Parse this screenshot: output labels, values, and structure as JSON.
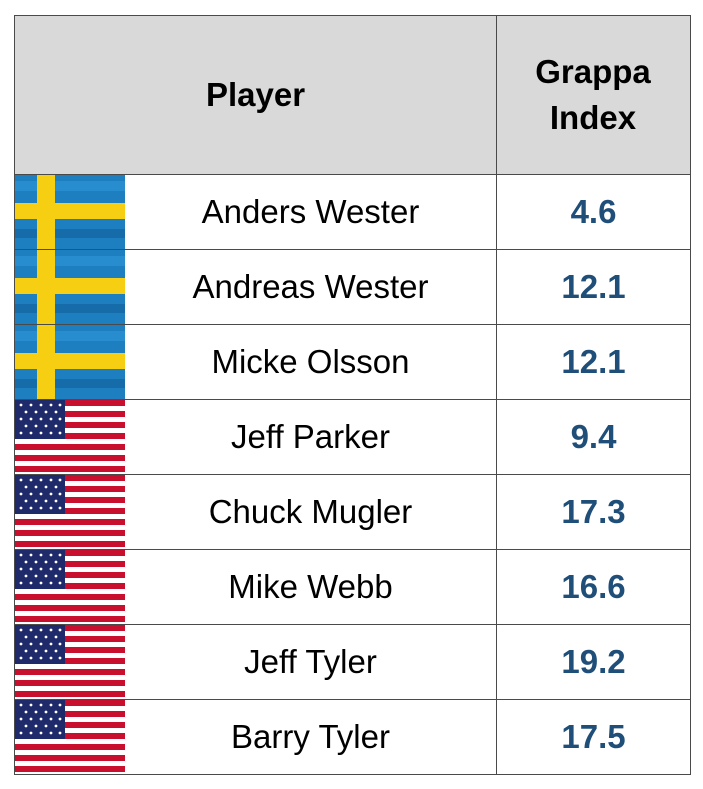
{
  "header": {
    "player_label": "Player",
    "index_label_line1": "Grappa",
    "index_label_line2": "Index"
  },
  "rows": [
    {
      "flag": "sweden-flag-icon",
      "name": "Anders Wester",
      "index": "4.6"
    },
    {
      "flag": "sweden-flag-icon",
      "name": "Andreas Wester",
      "index": "12.1"
    },
    {
      "flag": "sweden-flag-icon",
      "name": "Micke Olsson",
      "index": "12.1"
    },
    {
      "flag": "usa-flag-icon",
      "name": "Jeff Parker",
      "index": "9.4"
    },
    {
      "flag": "usa-flag-icon",
      "name": "Chuck Mugler",
      "index": "17.3"
    },
    {
      "flag": "usa-flag-icon",
      "name": "Mike Webb",
      "index": "16.6"
    },
    {
      "flag": "usa-flag-icon",
      "name": "Jeff Tyler",
      "index": "19.2"
    },
    {
      "flag": "usa-flag-icon",
      "name": "Barry Tyler",
      "index": "17.5"
    }
  ],
  "colors": {
    "header_bg": "#d9d9d9",
    "value_text": "#1f4e79",
    "grid_line": "#4a4a4a"
  }
}
